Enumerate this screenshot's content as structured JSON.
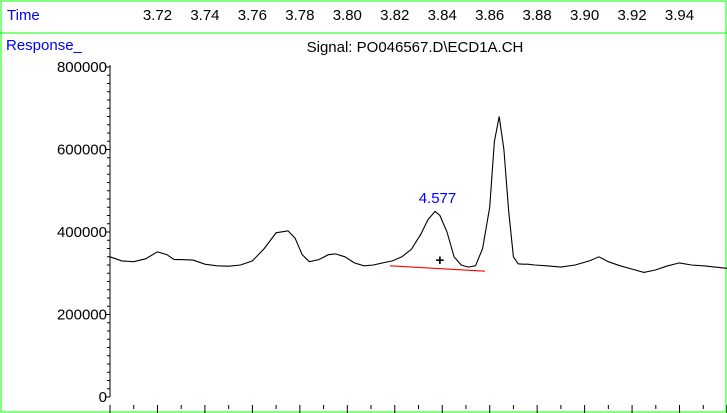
{
  "chart_data": {
    "type": "line",
    "title": "Signal: PO046567.D\\ECD1A.CH",
    "xlabel": "Time",
    "ylabel": "Response_",
    "x_ticks": [
      "3.72",
      "3.74",
      "3.76",
      "3.78",
      "3.80",
      "3.82",
      "3.84",
      "3.86",
      "3.88",
      "3.90",
      "3.92",
      "3.94"
    ],
    "y_ticks": [
      "0",
      "200000",
      "400000",
      "600000",
      "800000"
    ],
    "xlim": [
      3.7,
      3.96
    ],
    "ylim": [
      0,
      800000
    ],
    "grid": false,
    "series": [
      {
        "x": [
          3.7,
          3.705,
          3.71,
          3.715,
          3.72,
          3.724,
          3.727,
          3.73,
          3.735,
          3.74,
          3.745,
          3.75,
          3.755,
          3.76,
          3.765,
          3.77,
          3.775,
          3.778,
          3.781,
          3.784,
          3.788,
          3.792,
          3.795,
          3.799,
          3.803,
          3.807,
          3.811,
          3.815,
          3.819,
          3.823,
          3.827,
          3.831,
          3.834,
          3.837,
          3.839,
          3.842,
          3.845,
          3.848,
          3.851,
          3.854,
          3.857,
          3.86,
          3.862,
          3.864,
          3.866,
          3.868,
          3.87,
          3.872,
          3.874,
          3.876,
          3.879,
          3.884,
          3.89,
          3.896,
          3.902,
          3.906,
          3.91,
          3.915,
          3.92,
          3.925,
          3.93,
          3.935,
          3.94,
          3.945,
          3.95,
          3.955,
          3.96
        ],
        "y": [
          340000,
          330000,
          328000,
          335000,
          352000,
          345000,
          333000,
          333000,
          332000,
          322000,
          318000,
          317000,
          320000,
          330000,
          360000,
          398000,
          403000,
          385000,
          345000,
          328000,
          333000,
          345000,
          347000,
          340000,
          325000,
          318000,
          320000,
          325000,
          330000,
          340000,
          358000,
          395000,
          430000,
          450000,
          440000,
          400000,
          340000,
          320000,
          315000,
          318000,
          360000,
          460000,
          620000,
          680000,
          600000,
          450000,
          340000,
          323000,
          322000,
          322000,
          320000,
          318000,
          315000,
          320000,
          330000,
          340000,
          328000,
          318000,
          310000,
          302000,
          308000,
          318000,
          325000,
          320000,
          318000,
          315000,
          312000
        ]
      }
    ],
    "annotations": [
      {
        "text": "4.577",
        "x": 3.838,
        "y": 470000
      },
      {
        "text": "+",
        "x": 3.839,
        "y": 335000
      }
    ],
    "baseline": {
      "x": [
        3.818,
        3.858
      ],
      "y": [
        318000,
        305000
      ],
      "color": "#ff0000"
    },
    "colors": {
      "trace": "#000000",
      "frame": "#00ff00",
      "label": "#0000ff",
      "baseline": "#ff0000"
    }
  }
}
